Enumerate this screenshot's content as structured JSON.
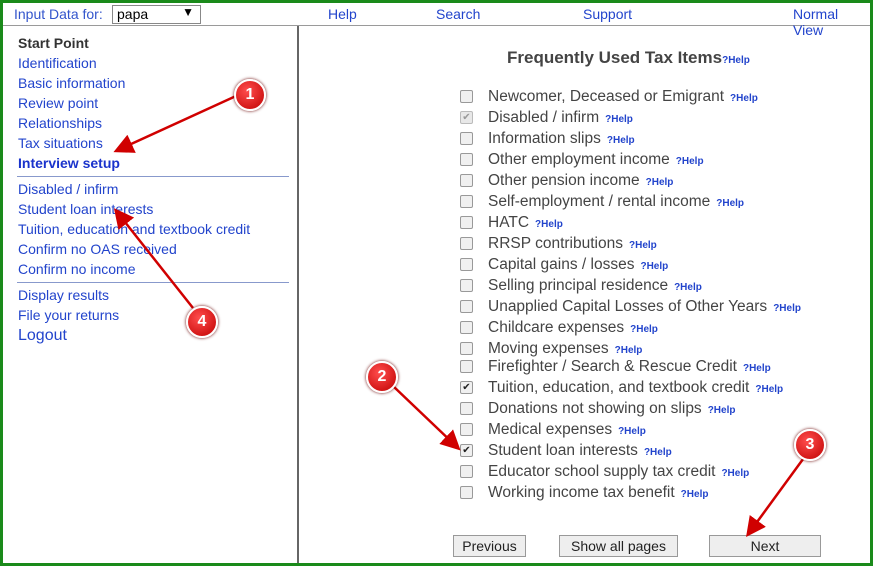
{
  "topbar": {
    "input_label": "Input Data for:",
    "input_value": "papa",
    "nav": [
      "Help",
      "Search",
      "Support",
      "Normal View"
    ]
  },
  "sidebar": {
    "header": "Start Point",
    "group1": [
      "Identification",
      "Basic information",
      "Review point",
      "Relationships",
      "Tax situations",
      "Interview setup"
    ],
    "group2": [
      "Disabled / infirm",
      "Student loan interests",
      "Tuition, education and textbook credit",
      "Confirm no OAS received",
      "Confirm no income"
    ],
    "group3": [
      "Display results",
      "File your returns"
    ],
    "logout": "Logout"
  },
  "main": {
    "title": "Frequently Used Tax Items",
    "help_label": "?Help",
    "items": [
      {
        "label": "Newcomer, Deceased or Emigrant",
        "checked": false,
        "disabled": false
      },
      {
        "label": "Disabled / infirm",
        "checked": true,
        "disabled": true
      },
      {
        "label": "Information slips",
        "checked": false,
        "disabled": false
      },
      {
        "label": "Other employment income",
        "checked": false,
        "disabled": false
      },
      {
        "label": "Other pension income",
        "checked": false,
        "disabled": false
      },
      {
        "label": "Self-employment / rental income",
        "checked": false,
        "disabled": false
      },
      {
        "label": "HATC",
        "checked": false,
        "disabled": false
      },
      {
        "label": "RRSP contributions",
        "checked": false,
        "disabled": false
      },
      {
        "label": "Capital gains / losses",
        "checked": false,
        "disabled": false
      },
      {
        "label": "Selling principal residence",
        "checked": false,
        "disabled": false
      },
      {
        "label": "Unapplied Capital Losses of Other Years",
        "checked": false,
        "disabled": false
      },
      {
        "label": "Childcare expenses",
        "checked": false,
        "disabled": false
      },
      {
        "label": "Moving expenses",
        "checked": false,
        "disabled": false
      },
      {
        "label": "Firefighter / Search & Rescue Credit",
        "checked": false,
        "disabled": false
      },
      {
        "label": "Tuition, education, and textbook credit",
        "checked": true,
        "disabled": false
      },
      {
        "label": "Donations not showing on slips",
        "checked": false,
        "disabled": false
      },
      {
        "label": "Medical expenses",
        "checked": false,
        "disabled": false
      },
      {
        "label": "Student loan interests",
        "checked": true,
        "disabled": false
      },
      {
        "label": "Educator school supply tax credit",
        "checked": false,
        "disabled": false
      },
      {
        "label": "Working income tax benefit",
        "checked": false,
        "disabled": false
      }
    ],
    "buttons": {
      "previous": "Previous",
      "show_all": "Show all pages",
      "next": "Next"
    }
  },
  "annotations": [
    "1",
    "2",
    "3",
    "4"
  ],
  "colors": {
    "frame": "#1a8a1a",
    "link": "#2244cc",
    "badge": "#d00000"
  }
}
